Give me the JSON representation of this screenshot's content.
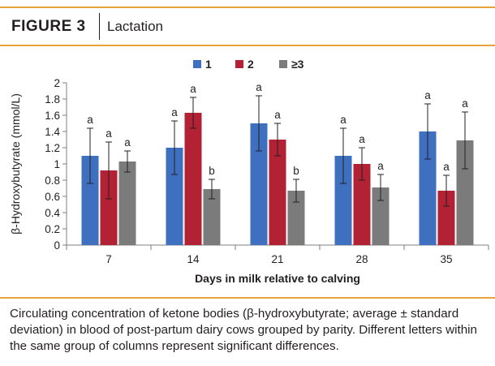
{
  "header": {
    "figure_label": "FIGURE 3",
    "title": "Lactation"
  },
  "caption": "Circulating concentration of ketone bodies (β-hydroxybutyrate; average ± standard deviation) in blood of post-partum dairy cows grouped by parity. Different letters within the same group of columns represent significant differences.",
  "chart_data": {
    "type": "bar",
    "title": "",
    "xlabel": "Days in milk relative to calving",
    "ylabel": "β-Hydroxybutyrate (mmol/L)",
    "ylim": [
      0,
      2
    ],
    "yticks": [
      "0",
      "0.2",
      "0.4",
      "0.6",
      "0.8",
      "1",
      "1.2",
      "1.4",
      "1.6",
      "1.8",
      "2"
    ],
    "categories": [
      "7",
      "14",
      "21",
      "28",
      "35"
    ],
    "legend_position": "top",
    "grid": false,
    "series": [
      {
        "name": "1",
        "color": "#3f6fbf",
        "values": [
          1.1,
          1.2,
          1.5,
          1.1,
          1.4
        ],
        "errors": [
          0.34,
          0.33,
          0.34,
          0.34,
          0.34
        ],
        "letters": [
          "a",
          "a",
          "a",
          "a",
          "a"
        ]
      },
      {
        "name": "2",
        "color": "#b22234",
        "values": [
          0.92,
          1.63,
          1.3,
          1.0,
          0.67
        ],
        "errors": [
          0.35,
          0.19,
          0.2,
          0.2,
          0.19
        ],
        "letters": [
          "a",
          "a",
          "a",
          "a",
          "a"
        ]
      },
      {
        "name": "≥3",
        "color": "#7b7b7b",
        "values": [
          1.03,
          0.69,
          0.67,
          0.71,
          1.29
        ],
        "errors": [
          0.13,
          0.12,
          0.14,
          0.16,
          0.35
        ],
        "letters": [
          "a",
          "b",
          "b",
          "a",
          "a"
        ]
      }
    ]
  }
}
